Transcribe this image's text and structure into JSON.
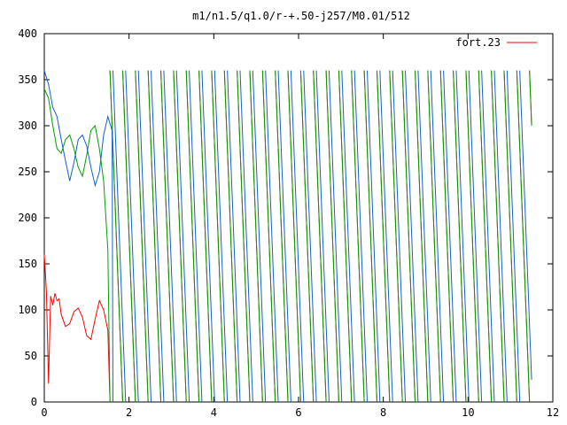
{
  "chart_data": {
    "type": "line",
    "title": "m1/n1.5/q1.0/r-+.50-j257/M0.01/512",
    "xlabel": "",
    "ylabel": "",
    "xlim": [
      0,
      12
    ],
    "ylim": [
      0,
      400
    ],
    "x_ticks": [
      0,
      2,
      4,
      6,
      8,
      10,
      12
    ],
    "y_ticks": [
      0,
      50,
      100,
      150,
      200,
      250,
      300,
      350,
      400
    ],
    "x_tick_labels": [
      "0",
      "2",
      "4",
      "6",
      "8",
      "10",
      "12"
    ],
    "y_tick_labels": [
      "0",
      "50",
      "100",
      "150",
      "200",
      "250",
      "300",
      "350",
      "400"
    ],
    "grid": false,
    "legend_position": "top-right",
    "series": [
      {
        "name": "fort.23",
        "color": "#ff0000",
        "description_points": [
          [
            0.0,
            160
          ],
          [
            0.05,
            120
          ],
          [
            0.1,
            20
          ],
          [
            0.15,
            115
          ],
          [
            0.2,
            105
          ],
          [
            0.25,
            118
          ],
          [
            0.3,
            110
          ],
          [
            0.35,
            112
          ],
          [
            0.4,
            95
          ],
          [
            0.5,
            82
          ],
          [
            0.6,
            85
          ],
          [
            0.7,
            98
          ],
          [
            0.8,
            102
          ],
          [
            0.9,
            92
          ],
          [
            1.0,
            72
          ],
          [
            1.1,
            68
          ],
          [
            1.2,
            90
          ],
          [
            1.3,
            110
          ],
          [
            1.4,
            100
          ],
          [
            1.5,
            78
          ]
        ]
      },
      {
        "name": "",
        "color": "#00a000",
        "description_points": [
          [
            0.0,
            340
          ],
          [
            0.1,
            330
          ],
          [
            0.2,
            300
          ],
          [
            0.3,
            275
          ],
          [
            0.4,
            270
          ],
          [
            0.5,
            285
          ],
          [
            0.6,
            290
          ],
          [
            0.7,
            275
          ],
          [
            0.8,
            255
          ],
          [
            0.9,
            245
          ],
          [
            1.0,
            268
          ],
          [
            1.1,
            295
          ],
          [
            1.2,
            300
          ],
          [
            1.3,
            275
          ],
          [
            1.4,
            240
          ],
          [
            1.5,
            165
          ]
        ]
      },
      {
        "name": "",
        "color": "#1060d0",
        "description_points": [
          [
            0.0,
            360
          ],
          [
            0.1,
            345
          ],
          [
            0.2,
            320
          ],
          [
            0.3,
            310
          ],
          [
            0.4,
            285
          ],
          [
            0.5,
            262
          ],
          [
            0.6,
            240
          ],
          [
            0.7,
            260
          ],
          [
            0.8,
            285
          ],
          [
            0.9,
            290
          ],
          [
            1.0,
            278
          ],
          [
            1.1,
            255
          ],
          [
            1.2,
            235
          ],
          [
            1.3,
            250
          ],
          [
            1.4,
            290
          ],
          [
            1.5,
            310
          ],
          [
            1.6,
            295
          ]
        ]
      }
    ]
  }
}
